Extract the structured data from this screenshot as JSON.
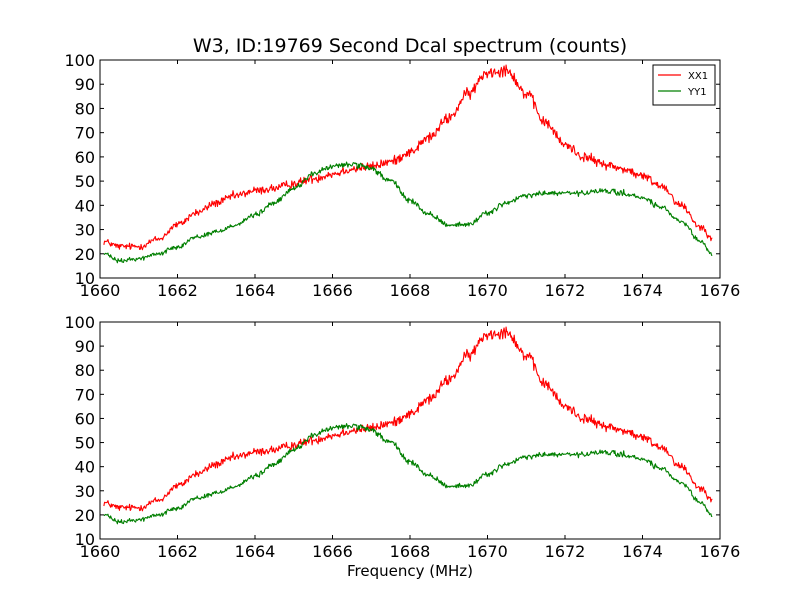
{
  "chart_data": [
    {
      "type": "line",
      "title": "W3, ID:19769 Second Dcal spectrum (counts)",
      "xlabel": "",
      "ylabel": "",
      "xlim": [
        1660,
        1676
      ],
      "ylim": [
        10,
        100
      ],
      "xticks": [
        "1660",
        "1662",
        "1664",
        "1666",
        "1668",
        "1670",
        "1672",
        "1674",
        "1676"
      ],
      "yticks": [
        "10",
        "20",
        "30",
        "40",
        "50",
        "60",
        "70",
        "80",
        "90",
        "100"
      ],
      "grid": false,
      "legend": "top-right",
      "series": [
        {
          "name": "XX1",
          "color": "#ff0000",
          "x": [
            1660.1,
            1660.5,
            1661.0,
            1661.5,
            1662.0,
            1662.5,
            1663.0,
            1663.5,
            1664.0,
            1664.5,
            1665.0,
            1665.5,
            1666.0,
            1666.5,
            1667.0,
            1667.5,
            1668.0,
            1668.5,
            1669.0,
            1669.5,
            1670.0,
            1670.5,
            1671.0,
            1671.5,
            1672.0,
            1672.5,
            1673.0,
            1673.5,
            1674.0,
            1674.5,
            1675.0,
            1675.5,
            1675.8
          ],
          "y": [
            25,
            23,
            23,
            26,
            32,
            37,
            41,
            44,
            46,
            47,
            49,
            51,
            53,
            55,
            56,
            58,
            62,
            68,
            76,
            86,
            95,
            96,
            86,
            74,
            65,
            60,
            57,
            55,
            52,
            48,
            40,
            31,
            27
          ]
        },
        {
          "name": "YY1",
          "color": "#007f00",
          "x": [
            1660.1,
            1660.5,
            1661.0,
            1661.5,
            1662.0,
            1662.5,
            1663.0,
            1663.5,
            1664.0,
            1664.5,
            1665.0,
            1665.5,
            1666.0,
            1666.5,
            1667.0,
            1667.5,
            1668.0,
            1668.5,
            1669.0,
            1669.5,
            1670.0,
            1670.5,
            1671.0,
            1671.5,
            1672.0,
            1672.5,
            1673.0,
            1673.5,
            1674.0,
            1674.5,
            1675.0,
            1675.5,
            1675.8
          ],
          "y": [
            20,
            17,
            18,
            20,
            23,
            27,
            29,
            32,
            36,
            41,
            47,
            53,
            56,
            57,
            55,
            50,
            42,
            36,
            32,
            32,
            37,
            41,
            44,
            45,
            45,
            45,
            46,
            45,
            43,
            39,
            33,
            25,
            20
          ]
        }
      ]
    },
    {
      "type": "line",
      "title": "",
      "xlabel": "Frequency (MHz)",
      "ylabel": "",
      "xlim": [
        1660,
        1676
      ],
      "ylim": [
        10,
        100
      ],
      "xticks": [
        "1660",
        "1662",
        "1664",
        "1666",
        "1668",
        "1670",
        "1672",
        "1674",
        "1676"
      ],
      "yticks": [
        "10",
        "20",
        "30",
        "40",
        "50",
        "60",
        "70",
        "80",
        "90",
        "100"
      ],
      "grid": false,
      "series": [
        {
          "color": "#ff0000",
          "x": [
            1660.1,
            1660.5,
            1661.0,
            1661.5,
            1662.0,
            1662.5,
            1663.0,
            1663.5,
            1664.0,
            1664.5,
            1665.0,
            1665.5,
            1666.0,
            1666.5,
            1667.0,
            1667.5,
            1668.0,
            1668.5,
            1669.0,
            1669.5,
            1670.0,
            1670.5,
            1671.0,
            1671.5,
            1672.0,
            1672.5,
            1673.0,
            1673.5,
            1674.0,
            1674.5,
            1675.0,
            1675.5,
            1675.8
          ],
          "y": [
            25,
            23,
            23,
            26,
            32,
            37,
            41,
            44,
            46,
            47,
            49,
            51,
            53,
            55,
            56,
            58,
            62,
            68,
            76,
            86,
            95,
            96,
            86,
            74,
            65,
            60,
            57,
            55,
            52,
            48,
            40,
            31,
            27
          ]
        },
        {
          "color": "#007f00",
          "x": [
            1660.1,
            1660.5,
            1661.0,
            1661.5,
            1662.0,
            1662.5,
            1663.0,
            1663.5,
            1664.0,
            1664.5,
            1665.0,
            1665.5,
            1666.0,
            1666.5,
            1667.0,
            1667.5,
            1668.0,
            1668.5,
            1669.0,
            1669.5,
            1670.0,
            1670.5,
            1671.0,
            1671.5,
            1672.0,
            1672.5,
            1673.0,
            1673.5,
            1674.0,
            1674.5,
            1675.0,
            1675.5,
            1675.8
          ],
          "y": [
            20,
            17,
            18,
            20,
            23,
            27,
            29,
            32,
            36,
            41,
            47,
            53,
            56,
            57,
            55,
            50,
            42,
            36,
            32,
            32,
            37,
            41,
            44,
            45,
            45,
            45,
            46,
            45,
            43,
            39,
            33,
            25,
            20
          ]
        }
      ]
    }
  ]
}
